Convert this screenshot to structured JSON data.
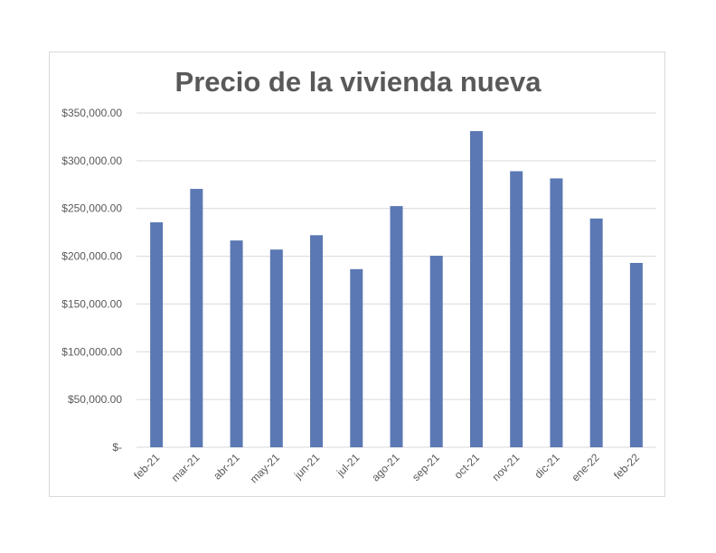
{
  "chart_data": {
    "type": "bar",
    "title": "Precio de la vivienda nueva",
    "xlabel": "",
    "ylabel": "",
    "categories": [
      "feb-21",
      "mar-21",
      "abr-21",
      "may-21",
      "jun-21",
      "jul-21",
      "ago-21",
      "sep-21",
      "oct-21",
      "nov-21",
      "dic-21",
      "ene-22",
      "feb-22"
    ],
    "values": [
      235500,
      270500,
      216500,
      207000,
      222000,
      186500,
      252500,
      200500,
      331000,
      289000,
      281500,
      239500,
      193000
    ],
    "ylim": [
      0,
      350000
    ],
    "yticks": [
      0,
      50000,
      100000,
      150000,
      200000,
      250000,
      300000,
      350000
    ],
    "ytick_labels": [
      "$-",
      "$50,000.00",
      "$100,000.00",
      "$150,000.00",
      "$200,000.00",
      "$250,000.00",
      "$300,000.00",
      "$350,000.00"
    ],
    "grid": true,
    "legend": "none",
    "bar_color": "#5b78b4"
  }
}
